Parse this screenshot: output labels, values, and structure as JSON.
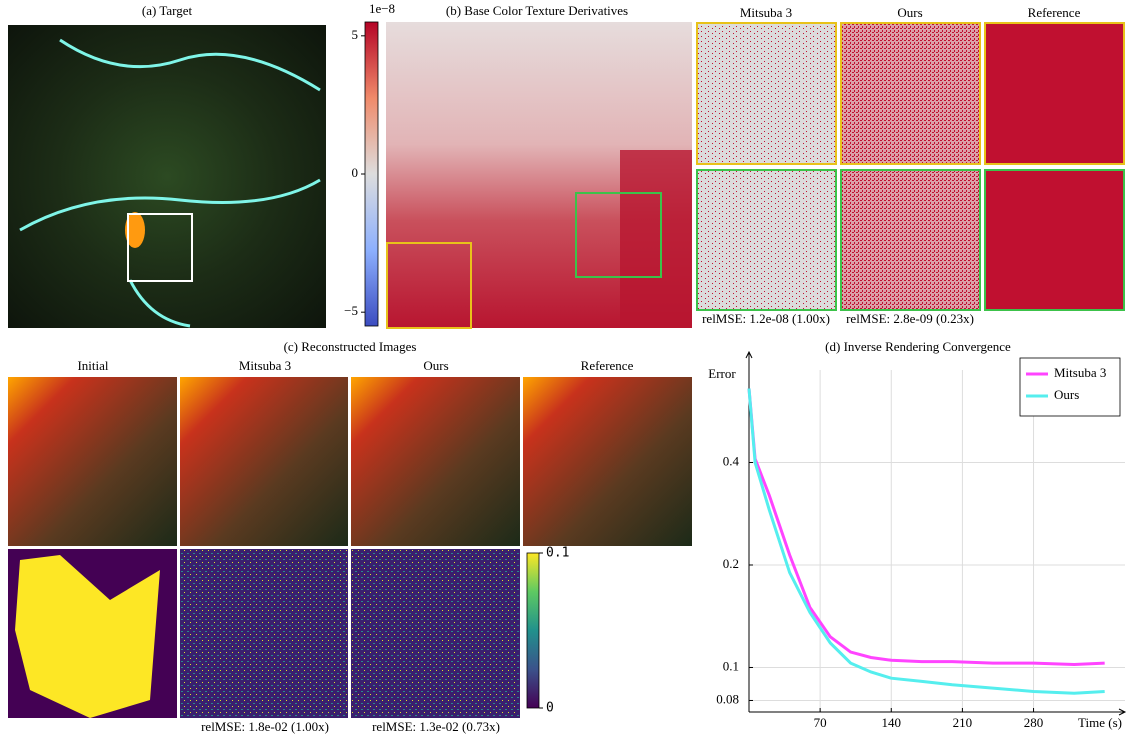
{
  "panels": {
    "a": {
      "title": "(a) Target"
    },
    "b": {
      "title": "(b) Base Color Texture Derivatives",
      "colorbar": {
        "exponent": "1e−8",
        "lim": [
          -5.5,
          5.5
        ],
        "ticks": [
          5,
          0,
          {
            "value": -5,
            "label": "−5"
          }
        ]
      },
      "columns": [
        "Mitsuba 3",
        "Ours",
        "Reference"
      ],
      "relmse": [
        "relMSE: 1.2e-08 (1.00x)",
        "relMSE: 2.8e-09 (0.23x)"
      ]
    },
    "c": {
      "title": "(c) Reconstructed Images",
      "columns": [
        "Initial",
        "Mitsuba 3",
        "Ours",
        "Reference"
      ],
      "colorbar": {
        "lim": [
          0,
          0.1
        ],
        "ticks": [
          0.1,
          0
        ]
      },
      "relmse": [
        "relMSE: 1.8e-02 (1.00x)",
        "relMSE: 1.3e-02 (0.73x)"
      ]
    }
  },
  "chart_data": {
    "type": "line",
    "title": "(d) Inverse Rendering Convergence",
    "y_label": "Error",
    "x_label": "Time (s)",
    "x": [
      0,
      6,
      20,
      40,
      60,
      80,
      100,
      120,
      140,
      170,
      200,
      240,
      280,
      320,
      350
    ],
    "series": [
      {
        "name": "Mitsuba 3",
        "color": "#ff44ff",
        "values": [
          0.66,
          0.41,
          0.32,
          0.214,
          0.15,
          0.123,
          0.111,
          0.107,
          0.105,
          0.104,
          0.104,
          0.103,
          0.103,
          0.102,
          0.103
        ]
      },
      {
        "name": "Ours",
        "color": "#55eeee",
        "values": [
          0.66,
          0.4,
          0.29,
          0.19,
          0.145,
          0.118,
          0.103,
          0.097,
          0.093,
          0.091,
          0.089,
          0.087,
          0.085,
          0.084,
          0.085
        ]
      }
    ],
    "xlim": [
      0,
      370
    ],
    "xticks": [
      70,
      140,
      210,
      280
    ],
    "ylim": [
      0.074,
      0.8
    ],
    "yticks": [
      0.08,
      0.1,
      0.2,
      0.4
    ],
    "log_y": true,
    "grid": true,
    "legend": "upper right"
  }
}
